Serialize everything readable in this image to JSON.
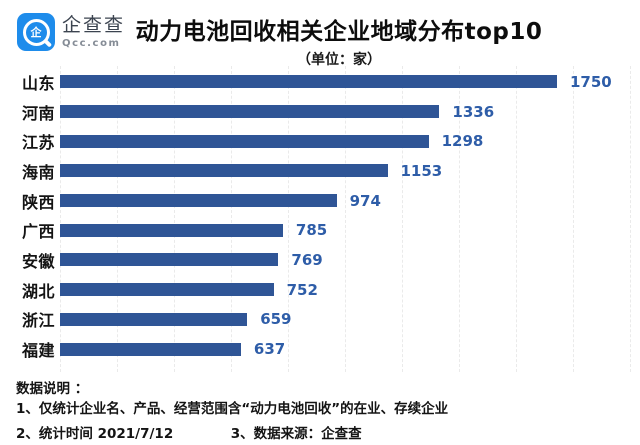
{
  "brand": {
    "logo_icon": "企",
    "name": "企查查",
    "domain": "Qcc.com",
    "brand_color": "#1e8ceb"
  },
  "header": {
    "title": "动力电池回收相关企业地域分布top10",
    "subtitle": "（单位：家）"
  },
  "chart_data": {
    "type": "bar",
    "orientation": "horizontal",
    "title": "动力电池回收相关企业地域分布top10",
    "unit": "单位：家",
    "categories": [
      "山东",
      "河南",
      "江苏",
      "海南",
      "陕西",
      "广西",
      "安徽",
      "湖北",
      "浙江",
      "福建"
    ],
    "values": [
      1750,
      1336,
      1298,
      1153,
      974,
      785,
      769,
      752,
      659,
      637
    ],
    "max_value": 1750,
    "xlim": [
      0,
      1750
    ],
    "bar_color": "#2f5596",
    "value_label_color": "#2e5da8",
    "grid": true,
    "legend_position": "none"
  },
  "footer": {
    "heading": "数据说明 ：",
    "notes": [
      "1、仅统计企业名、产品、经营范围含“动力电池回收”的在业、存续企业",
      "2、统计时间 2021/7/12",
      "3、数据来源：企查查"
    ]
  }
}
